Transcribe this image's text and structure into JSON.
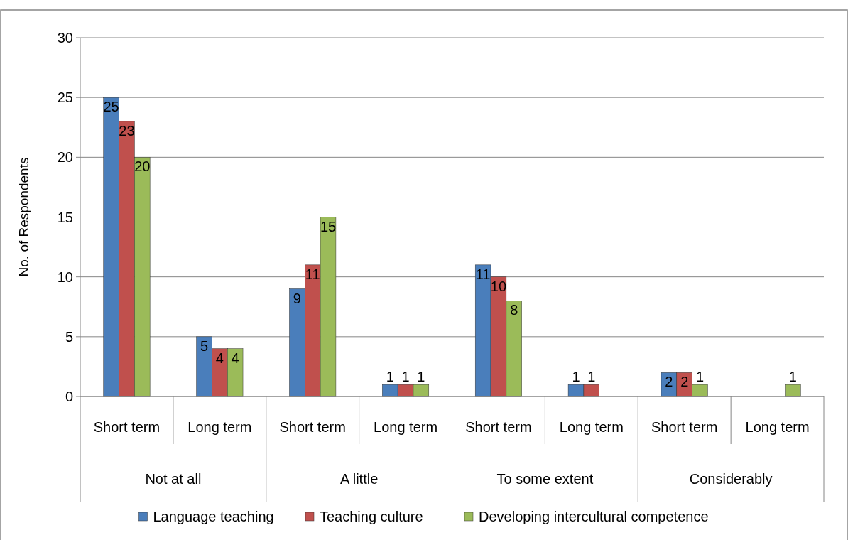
{
  "chart_data": {
    "type": "bar",
    "ylabel": "No. of Respondents",
    "categories": [
      "Short term",
      "Long term",
      "Short term",
      "Long term",
      "Short term",
      "Long term",
      "Short term",
      "Long term"
    ],
    "annotations": [
      "Not at all",
      "A little",
      "To some extent",
      "Considerably"
    ],
    "series": [
      {
        "name": "Language teaching",
        "color": "#4a7ebb",
        "values": [
          25,
          5,
          9,
          1,
          11,
          1,
          2,
          null
        ]
      },
      {
        "name": "Teaching culture",
        "color": "#c0504d",
        "values": [
          23,
          4,
          11,
          1,
          10,
          1,
          2,
          null
        ]
      },
      {
        "name": "Developing intercultural competence",
        "color": "#9bbb59",
        "values": [
          20,
          4,
          15,
          1,
          8,
          null,
          1,
          1
        ]
      }
    ],
    "ylim": [
      0,
      30
    ],
    "yticks": [
      0,
      5,
      10,
      15,
      20,
      25,
      30
    ],
    "grid": "y",
    "legend": "bottom",
    "data_labels": true
  }
}
